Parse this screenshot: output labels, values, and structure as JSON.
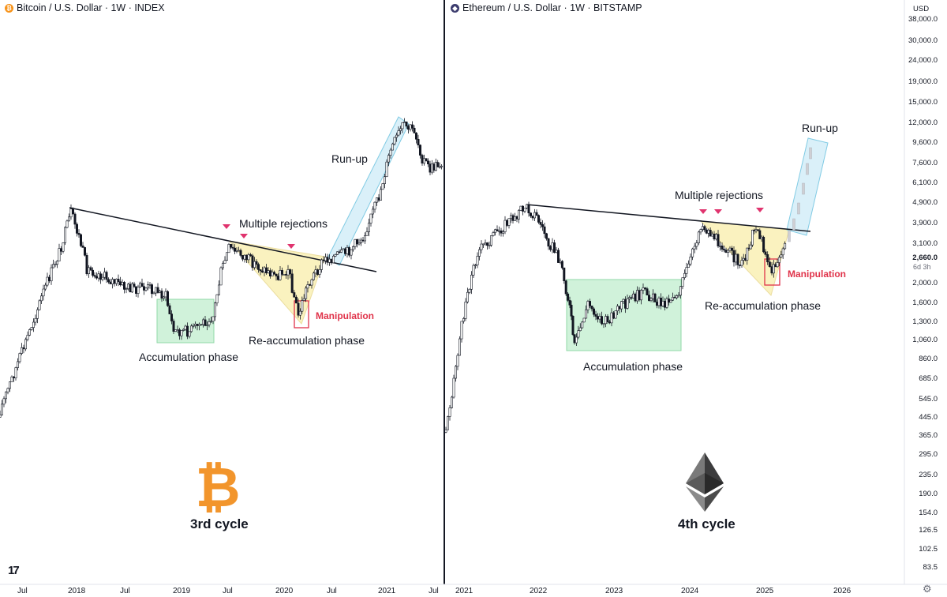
{
  "left_panel": {
    "title": "Bitcoin / U.S. Dollar · 1W · INDEX",
    "icon": "bitcoin-icon",
    "icon_color": "#f7931a",
    "cycle_label": "3rd cycle",
    "annotations": {
      "run_up": "Run-up",
      "multiple_rejections": "Multiple rejections",
      "manipulation": "Manipulation",
      "reaccumulation": "Re-accumulation phase",
      "accumulation": "Accumulation phase"
    }
  },
  "right_panel": {
    "title": "Ethereum / U.S. Dollar · 1W · BITSTAMP",
    "icon": "ethereum-icon",
    "cycle_label": "4th cycle",
    "annotations": {
      "run_up": "Run-up",
      "multiple_rejections": "Multiple rejections",
      "manipulation": "Manipulation",
      "reaccumulation": "Re-accumulation phase",
      "accumulation": "Accumulation phase"
    }
  },
  "price_axis": {
    "currency": "USD",
    "countdown": "6d 3h",
    "current_price": "2,660.0"
  },
  "colors": {
    "accumulation_fill": "#c8f0d4",
    "reaccumulation_fill": "#faf0b4",
    "runup_fill": "#d4eef8",
    "manipulation": "#e0334a",
    "rejection_marker": "#e0336e",
    "candle_up": "#ffffff",
    "candle_down": "#131722",
    "btc_orange": "#f2952c"
  },
  "chart_data": [
    {
      "type": "candlestick",
      "title": "Bitcoin / U.S. Dollar · 1W · INDEX",
      "x_tick_labels": [
        "Jul",
        "2018",
        "Jul",
        "2019",
        "Jul",
        "2020",
        "Jul",
        "2021",
        "Jul"
      ],
      "x_range": [
        "2017-05",
        "2021-07"
      ],
      "y_scale": "log",
      "grid": false,
      "key_points": [
        {
          "date": "2017-05",
          "close": 1500
        },
        {
          "date": "2017-12",
          "close": 19000
        },
        {
          "date": "2018-12",
          "close": 3200
        },
        {
          "date": "2019-06",
          "close": 13000
        },
        {
          "date": "2020-03",
          "close": 4000
        },
        {
          "date": "2021-04",
          "close": 63000
        }
      ],
      "annotations": [
        "Accumulation phase",
        "Multiple rejections",
        "Re-accumulation phase",
        "Manipulation",
        "Run-up"
      ],
      "cycle": "3rd cycle"
    },
    {
      "type": "candlestick",
      "title": "Ethereum / U.S. Dollar · 1W · BITSTAMP",
      "x_tick_labels": [
        "2021",
        "2022",
        "2023",
        "2024",
        "2025",
        "2026"
      ],
      "x_range": [
        "2020-12",
        "2026-02"
      ],
      "y_scale": "log",
      "y_tick_labels": [
        "38,000.0",
        "30,000.0",
        "24,000.0",
        "19,000.0",
        "15,000.0",
        "12,000.0",
        "9,600.0",
        "7,600.0",
        "6,100.0",
        "4,900.0",
        "3,900.0",
        "3,100.0",
        "2,660.0",
        "2,000.0",
        "1,600.0",
        "1,300.0",
        "1,060.0",
        "860.0",
        "685.0",
        "545.0",
        "445.0",
        "365.0",
        "295.0",
        "235.0",
        "190.0",
        "154.0",
        "126.5",
        "102.5",
        "83.5"
      ],
      "y_range": [
        80,
        40000
      ],
      "grid": false,
      "key_points": [
        {
          "date": "2020-12",
          "close": 380
        },
        {
          "date": "2021-11",
          "close": 4800
        },
        {
          "date": "2022-06",
          "close": 1000
        },
        {
          "date": "2024-03",
          "close": 4000
        },
        {
          "date": "2025-02",
          "close": 2100
        },
        {
          "date": "2025-09",
          "close": 9600
        }
      ],
      "annotations": [
        "Accumulation phase",
        "Multiple rejections",
        "Re-accumulation phase",
        "Manipulation",
        "Run-up"
      ],
      "cycle": "4th cycle"
    }
  ]
}
